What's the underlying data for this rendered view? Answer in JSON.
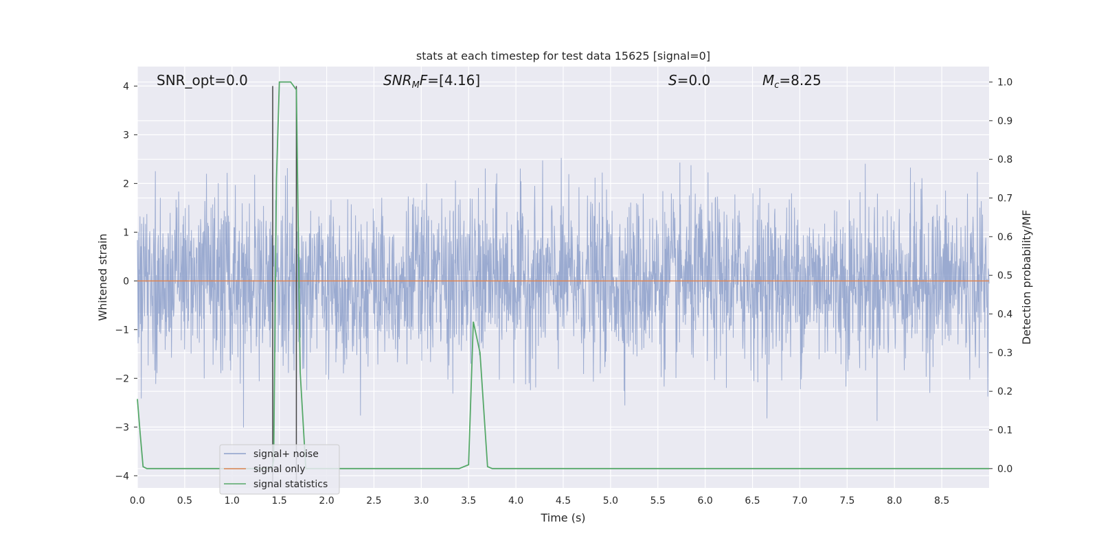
{
  "chart_data": {
    "type": "line",
    "title": "stats at each timestep for test data 15625 [signal=0]",
    "xlabel": "Time (s)",
    "ylabel": "Whitened strain",
    "ylabel_right": "Detection probability/MF",
    "xlim": [
      0.0,
      9.0
    ],
    "ylim": [
      -4.25,
      4.4
    ],
    "ylim_right": [
      -0.05,
      1.04
    ],
    "x_ticks": [
      "0.0",
      "0.5",
      "1.0",
      "1.5",
      "2.0",
      "2.5",
      "3.0",
      "3.5",
      "4.0",
      "4.5",
      "5.0",
      "5.5",
      "6.0",
      "6.5",
      "7.0",
      "7.5",
      "8.0",
      "8.5"
    ],
    "x_tick_values": [
      0.0,
      0.5,
      1.0,
      1.5,
      2.0,
      2.5,
      3.0,
      3.5,
      4.0,
      4.5,
      5.0,
      5.5,
      6.0,
      6.5,
      7.0,
      7.5,
      8.0,
      8.5
    ],
    "y_ticks": [
      "4",
      "3",
      "2",
      "1",
      "0",
      "−1",
      "−2",
      "−3",
      "−4"
    ],
    "y_tick_values": [
      4,
      3,
      2,
      1,
      0,
      -1,
      -2,
      -3,
      -4
    ],
    "y_ticks_right": [
      "1.0",
      "0.9",
      "0.8",
      "0.7",
      "0.6",
      "0.5",
      "0.4",
      "0.3",
      "0.2",
      "0.1",
      "0.0"
    ],
    "y_tick_values_right": [
      1.0,
      0.9,
      0.8,
      0.7,
      0.6,
      0.5,
      0.4,
      0.3,
      0.2,
      0.1,
      0.0
    ],
    "grid": true,
    "legend": "lower-left",
    "annotations": {
      "snr_opt": "SNR_opt=0.0",
      "snr_mf": "=[4.16]",
      "s_val": "=0.0",
      "mc_val": "=8.25"
    },
    "vlines": [
      {
        "x": 1.43,
        "ymin": -4.25,
        "ymax": 4.0
      },
      {
        "x": 1.68,
        "ymin": -4.25,
        "ymax": 4.0
      }
    ],
    "series": [
      {
        "name": "signal+ noise",
        "color": "#8c9fca",
        "kind": "noise",
        "band_sigma": 0.85,
        "envelope_max": 4.0,
        "envelope_min": -3.9
      },
      {
        "name": "signal only",
        "color": "#dd8452",
        "kind": "flat",
        "x": [
          0.0,
          9.0
        ],
        "y": [
          0.0,
          0.0
        ]
      },
      {
        "name": "signal statistics",
        "color": "#55a868",
        "axis": "right",
        "x": [
          0.0,
          0.03,
          0.06,
          0.1,
          0.2,
          1.3,
          1.42,
          1.44,
          1.47,
          1.5,
          1.55,
          1.62,
          1.68,
          1.72,
          1.78,
          1.85,
          3.4,
          3.5,
          3.55,
          3.62,
          3.7,
          3.75,
          9.0
        ],
        "y": [
          0.18,
          0.09,
          0.005,
          0.0,
          0.0,
          0.0,
          0.0,
          0.02,
          0.75,
          1.0,
          1.0,
          1.0,
          0.98,
          0.25,
          0.0,
          0.0,
          0.0,
          0.01,
          0.38,
          0.3,
          0.005,
          0.0,
          0.0
        ]
      }
    ]
  }
}
